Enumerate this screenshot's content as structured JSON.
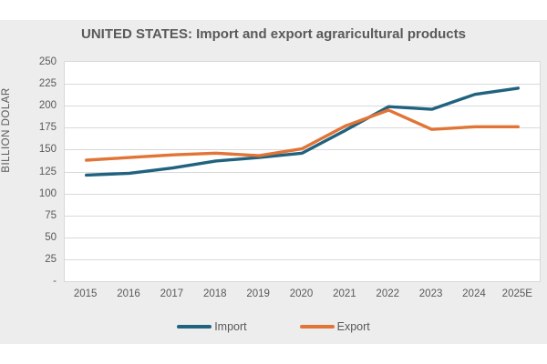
{
  "chart": {
    "title": "UNITED STATES: Import and export agraricultural products",
    "y_axis_title": "BILLION DOLAR",
    "zero_tick_label": "-",
    "legend_labels": [
      "Import",
      "Export"
    ]
  },
  "chart_data": {
    "type": "line",
    "title": "UNITED STATES: Import and export agraricultural products",
    "ylabel": "BILLION DOLAR",
    "xlabel": "",
    "categories": [
      "2015",
      "2016",
      "2017",
      "2018",
      "2019",
      "2020",
      "2021",
      "2022",
      "2023",
      "2024",
      "2025E"
    ],
    "series": [
      {
        "name": "Import",
        "color": "#20627f",
        "values": [
          121,
          123,
          129,
          137,
          141,
          146,
          172,
          199,
          196,
          213,
          220
        ]
      },
      {
        "name": "Export",
        "color": "#e17436",
        "values": [
          138,
          141,
          144,
          146,
          143,
          151,
          177,
          195,
          173,
          176,
          176
        ]
      }
    ],
    "ylim": [
      0,
      250
    ],
    "ytick_step": 25,
    "grid": true,
    "legend_position": "bottom"
  },
  "colors": {
    "page_background": "#ffffff",
    "chart_background": "#ededed",
    "plot_background": "#ffffff",
    "gridline": "#d9d9d9",
    "text": "#595959",
    "import_line": "#20627f",
    "export_line": "#e17436"
  }
}
